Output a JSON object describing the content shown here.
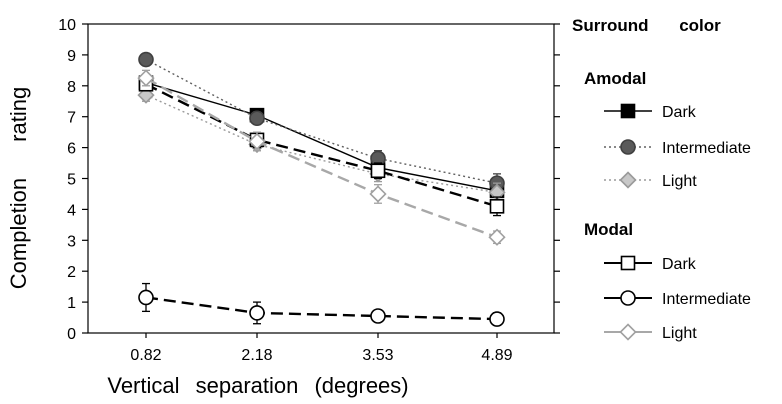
{
  "chart_data": {
    "type": "line",
    "categories": [
      "0.82",
      "2.18",
      "3.53",
      "4.89"
    ],
    "x": [
      0.82,
      2.18,
      3.53,
      4.89
    ],
    "ylim": [
      0,
      10
    ],
    "yticks": [
      "0",
      "1",
      "2",
      "3",
      "4",
      "5",
      "6",
      "7",
      "8",
      "9",
      "10"
    ],
    "xlabel": "Vertical separation (degrees)",
    "ylabel": "Completion rating",
    "legend_title": "Surround color",
    "legend_position": "right",
    "grid": false,
    "groups": [
      {
        "name": "Amodal",
        "series": [
          {
            "name": "Dark",
            "marker": "square",
            "fill": "#000000",
            "stroke": "#000000",
            "line_color": "#000000",
            "dash": "solid",
            "values": [
              8.1,
              7.05,
              5.35,
              4.6
            ],
            "errors": [
              0.2,
              0.2,
              0.25,
              0.3
            ]
          },
          {
            "name": "Intermediate",
            "marker": "circle",
            "fill": "#5a5a5a",
            "stroke": "#404040",
            "line_color": "#606060",
            "dash": "dotted",
            "values": [
              8.85,
              6.95,
              5.65,
              4.85
            ],
            "errors": [
              0.2,
              0.2,
              0.25,
              0.3
            ]
          },
          {
            "name": "Light",
            "marker": "diamond",
            "fill": "#c8c8c8",
            "stroke": "#9a9a9a",
            "line_color": "#9a9a9a",
            "dash": "dotted",
            "values": [
              7.7,
              6.1,
              5.15,
              4.55
            ],
            "errors": [
              0.2,
              0.2,
              0.25,
              0.3
            ]
          }
        ]
      },
      {
        "name": "Modal",
        "series": [
          {
            "name": "Dark",
            "marker": "square",
            "fill": "#ffffff",
            "stroke": "#000000",
            "line_color": "#000000",
            "dash": "dashed",
            "values": [
              8.05,
              6.25,
              5.25,
              4.1
            ],
            "errors": [
              0.2,
              0.25,
              0.25,
              0.3
            ]
          },
          {
            "name": "Intermediate",
            "marker": "circle",
            "fill": "#ffffff",
            "stroke": "#000000",
            "line_color": "#000000",
            "dash": "dashed",
            "values": [
              1.15,
              0.65,
              0.55,
              0.45
            ],
            "errors": [
              0.45,
              0.35,
              0.15,
              0.2
            ]
          },
          {
            "name": "Light",
            "marker": "diamond",
            "fill": "#ffffff",
            "stroke": "#a0a0a0",
            "line_color": "#a8a8a8",
            "dash": "dashed",
            "values": [
              8.25,
              6.2,
              4.5,
              3.1
            ],
            "errors": [
              0.25,
              0.3,
              0.3,
              0.2
            ]
          }
        ]
      }
    ]
  }
}
